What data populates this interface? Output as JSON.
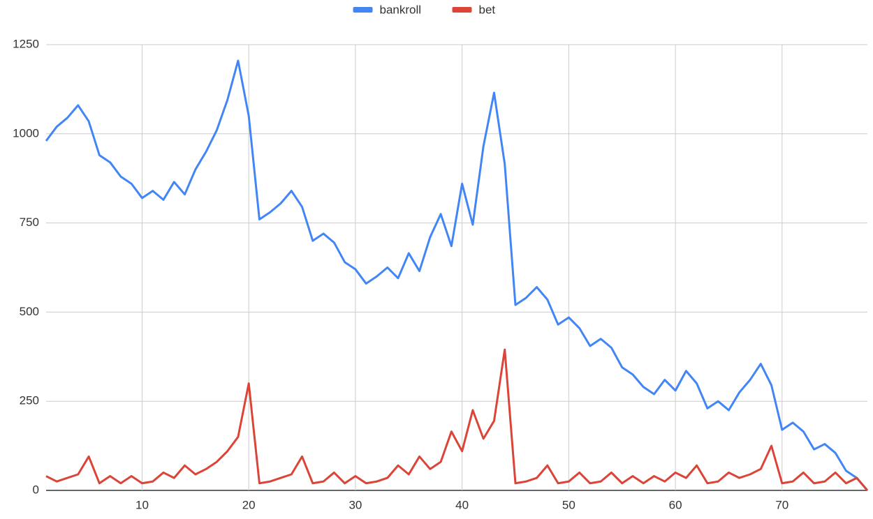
{
  "chart_data": {
    "type": "line",
    "x": [
      1,
      2,
      3,
      4,
      5,
      6,
      7,
      8,
      9,
      10,
      11,
      12,
      13,
      14,
      15,
      16,
      17,
      18,
      19,
      20,
      21,
      22,
      23,
      24,
      25,
      26,
      27,
      28,
      29,
      30,
      31,
      32,
      33,
      34,
      35,
      36,
      37,
      38,
      39,
      40,
      41,
      42,
      43,
      44,
      45,
      46,
      47,
      48,
      49,
      50,
      51,
      52,
      53,
      54,
      55,
      56,
      57,
      58,
      59,
      60,
      61,
      62,
      63,
      64,
      65,
      66,
      67,
      68,
      69,
      70,
      71,
      72,
      73,
      74,
      75,
      76,
      77,
      78
    ],
    "series": [
      {
        "name": "bankroll",
        "color": "#4285f4",
        "values": [
          980,
          1020,
          1045,
          1080,
          1035,
          940,
          920,
          880,
          860,
          820,
          840,
          815,
          865,
          830,
          900,
          950,
          1010,
          1095,
          1205,
          1050,
          760,
          780,
          805,
          840,
          795,
          700,
          720,
          695,
          640,
          620,
          580,
          600,
          625,
          595,
          665,
          615,
          710,
          775,
          685,
          860,
          745,
          965,
          1115,
          915,
          520,
          540,
          570,
          535,
          465,
          485,
          455,
          405,
          425,
          400,
          345,
          325,
          290,
          270,
          310,
          280,
          335,
          300,
          230,
          250,
          225,
          275,
          310,
          355,
          295,
          170,
          190,
          165,
          115,
          130,
          105,
          55,
          35,
          0
        ]
      },
      {
        "name": "bet",
        "color": "#db4437",
        "values": [
          40,
          25,
          35,
          45,
          95,
          20,
          40,
          20,
          40,
          20,
          25,
          50,
          35,
          70,
          45,
          60,
          80,
          110,
          150,
          300,
          20,
          25,
          35,
          45,
          95,
          20,
          25,
          50,
          20,
          40,
          20,
          25,
          35,
          70,
          45,
          95,
          60,
          80,
          165,
          110,
          225,
          145,
          195,
          395,
          20,
          25,
          35,
          70,
          20,
          25,
          50,
          20,
          25,
          50,
          20,
          40,
          20,
          40,
          25,
          50,
          35,
          70,
          20,
          25,
          50,
          35,
          45,
          60,
          125,
          20,
          25,
          50,
          20,
          25,
          50,
          20,
          35,
          0
        ]
      }
    ],
    "xlim": [
      1,
      78
    ],
    "xticks": [
      10,
      20,
      30,
      40,
      50,
      60,
      70
    ],
    "ylim": [
      0,
      1250
    ],
    "yticks": [
      0,
      250,
      500,
      750,
      1000,
      1250
    ],
    "grid": true,
    "legend": "top"
  }
}
